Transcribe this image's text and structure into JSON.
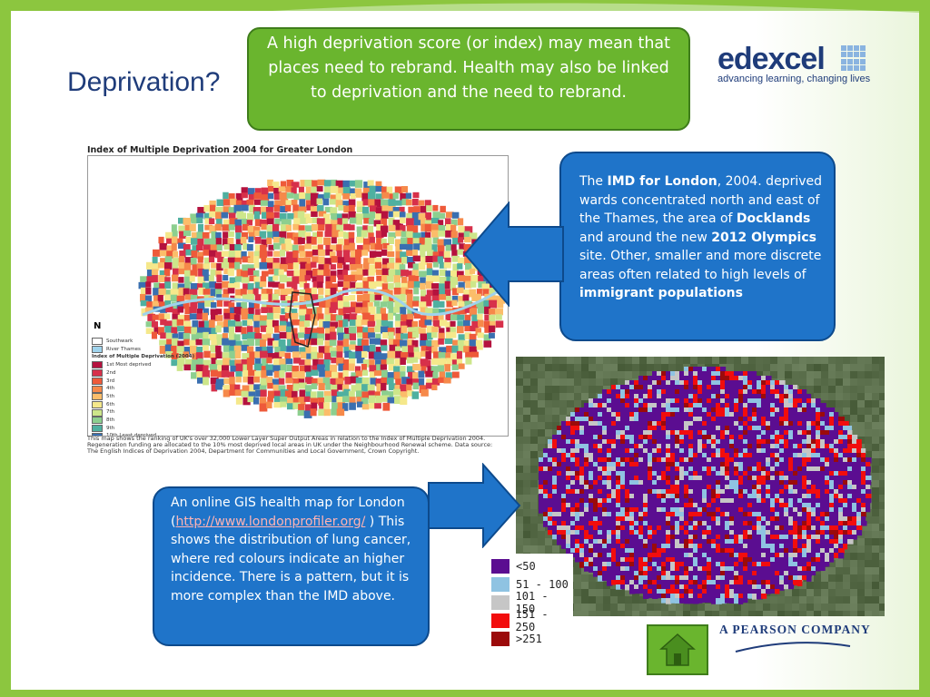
{
  "slide": {
    "title": "Deprivation?",
    "top_callout": "A high deprivation score (or index) may mean that places need to rebrand. Health may also be linked to deprivation and the need to rebrand.",
    "right_callout": {
      "p1": "The ",
      "b1": "IMD for London",
      "p2": ", 2004. deprived wards  concentrated north and east of the Thames, the area of ",
      "b2": "Docklands",
      "p3": " and around the new ",
      "b3": "2012 Olympics",
      "p4": " site. Other, smaller and more discrete areas  often related to high levels of ",
      "b4": "immigrant populations"
    },
    "left_callout": {
      "p1": "An online GIS health map for London (",
      "link": "http://www.londonprofiler.org/",
      "p2": " ) This shows the distribution of lung cancer, where red colours indicate an higher incidence.  There is a pattern, but it is more complex than the IMD above."
    }
  },
  "logo": {
    "word": "edexcel",
    "tagline": "advancing learning, changing lives"
  },
  "footer": {
    "pearson": "A PEARSON COMPANY"
  },
  "imd_map": {
    "title": "Index of Multiple Deprivation 2004 for Greater London",
    "north": "N",
    "legend_items": [
      "Southwark",
      "River Thames"
    ],
    "legend_heading": "Index of Multiple Deprivation (2004)",
    "deciles": [
      {
        "label": "1st   Most deprived",
        "color": "#b5123e"
      },
      {
        "label": "2nd",
        "color": "#d7304a"
      },
      {
        "label": "3rd",
        "color": "#ee5a3a"
      },
      {
        "label": "4th",
        "color": "#f6894a"
      },
      {
        "label": "5th",
        "color": "#fbbd6a"
      },
      {
        "label": "6th",
        "color": "#f5e88b"
      },
      {
        "label": "7th",
        "color": "#cde68a"
      },
      {
        "label": "8th",
        "color": "#8ccf8f"
      },
      {
        "label": "9th",
        "color": "#4fb0a0"
      },
      {
        "label": "10th  Least deprived",
        "color": "#3a6fb0"
      }
    ],
    "caption": "This map shows the ranking of UK's over 32,000 Lower Layer Super Output Areas in relation to the Index of Multiple Deprivation 2004. Regeneration funding are allocated to the 10% most deprived local areas in UK under the Neighbourhood Renewal scheme. Data source: The English Indices of Deprivation 2004, Department for Communities and Local Government, Crown Copyright."
  },
  "gis_legend": [
    {
      "label": "<50",
      "color": "#5b0d91"
    },
    {
      "label": "51 - 100",
      "color": "#8fc3e2"
    },
    {
      "label": "101 - 150",
      "color": "#c6c6c6"
    },
    {
      "label": "151 - 250",
      "color": "#f20d0d"
    },
    {
      "label": ">251",
      "color": "#9b0a0a"
    }
  ],
  "colors": {
    "frame_green": "#8cc63f",
    "callout_green": "#6ab52e",
    "callout_blue": "#1f74c9",
    "title_blue": "#1f3c7a"
  },
  "icons": {
    "home": "home-icon",
    "arrow_left": "arrow-left-icon",
    "arrow_right": "arrow-right-icon"
  }
}
